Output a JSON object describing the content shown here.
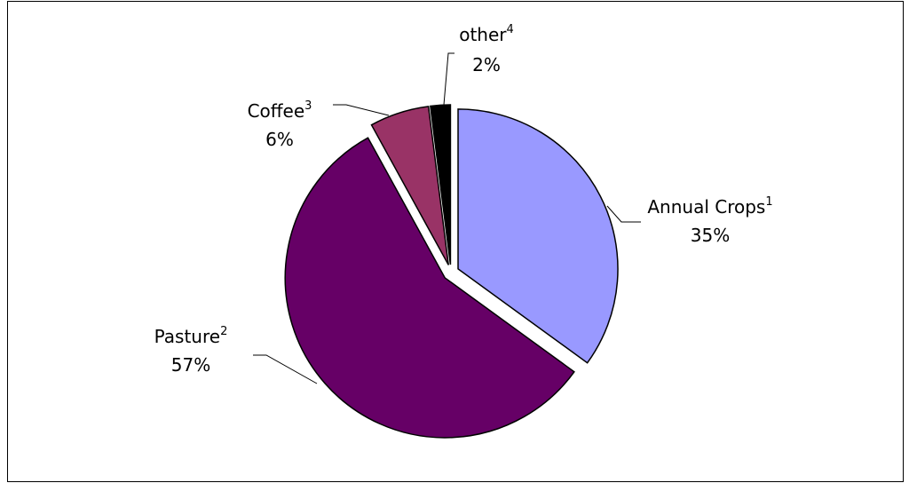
{
  "chart_data": {
    "type": "pie",
    "categories": [
      "Annual Crops",
      "Pasture",
      "Coffee",
      "other"
    ],
    "footnotes": [
      "1",
      "2",
      "3",
      "4"
    ],
    "values": [
      35,
      57,
      6,
      2
    ],
    "value_labels": [
      "35%",
      "57%",
      "6%",
      "2%"
    ],
    "colors": [
      "#9999ff",
      "#660066",
      "#993366",
      "#000000"
    ]
  }
}
